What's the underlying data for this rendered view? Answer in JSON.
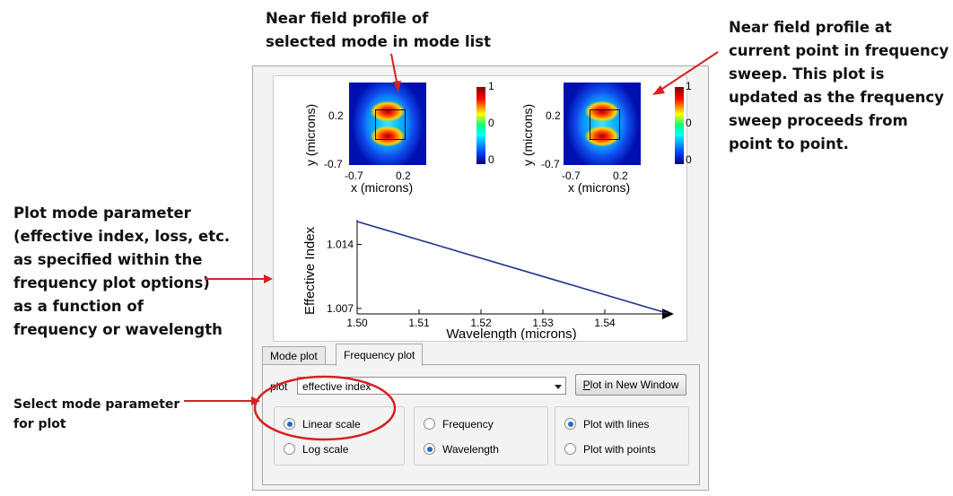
{
  "annotations": {
    "top": [
      "Near field profile of",
      "selected mode in mode list"
    ],
    "right": [
      "Near field profile at",
      "current point in frequency",
      "sweep. This plot is",
      "updated as the frequency",
      "sweep proceeds from",
      "point to point."
    ],
    "left": [
      "Plot mode parameter",
      "(effective index, loss, etc.",
      "as specified within the",
      "frequency plot options)",
      "as a function of",
      "frequency or wavelength"
    ],
    "select": [
      "Select mode parameter",
      "for plot"
    ]
  },
  "near_field": {
    "ylabel": "y (microns)",
    "xlabel": "x (microns)",
    "y_ticks": [
      "0.2",
      "-0.7"
    ],
    "x_ticks": [
      "-0.7",
      "0.2"
    ],
    "colorbar_ticks": [
      "1",
      "0",
      "0"
    ]
  },
  "chart_data": {
    "type": "line",
    "xlabel": "Wavelength (microns)",
    "ylabel": "Effective Index",
    "x_ticks": [
      "1.50",
      "1.51",
      "1.52",
      "1.53",
      "1.54"
    ],
    "y_ticks": [
      "1.014",
      "1.007"
    ],
    "xlim": [
      1.5,
      1.55
    ],
    "ylim": [
      1.0064,
      1.0167
    ],
    "series": [
      {
        "x": [
          1.5,
          1.55
        ],
        "y": [
          1.0165,
          1.0065
        ],
        "color": "#1f2f8f"
      }
    ]
  },
  "tabs": [
    {
      "label": "Mode plot",
      "active": false
    },
    {
      "label": "Frequency plot",
      "active": true
    }
  ],
  "plot_control": {
    "label": "plot",
    "selected": "effective index",
    "button_label_underlined": "P",
    "button_label_rest": "lot in New Window"
  },
  "scale_options": [
    {
      "label": "Linear scale",
      "selected": true
    },
    {
      "label": "Log scale",
      "selected": false
    }
  ],
  "axis_options": [
    {
      "label": "Frequency",
      "selected": false
    },
    {
      "label": "Wavelength",
      "selected": true
    }
  ],
  "style_options": [
    {
      "label": "Plot with lines",
      "selected": true
    },
    {
      "label": "Plot with points",
      "selected": false
    }
  ],
  "colors": {
    "arrow": "#d62020",
    "series": "#1f2f8f"
  }
}
